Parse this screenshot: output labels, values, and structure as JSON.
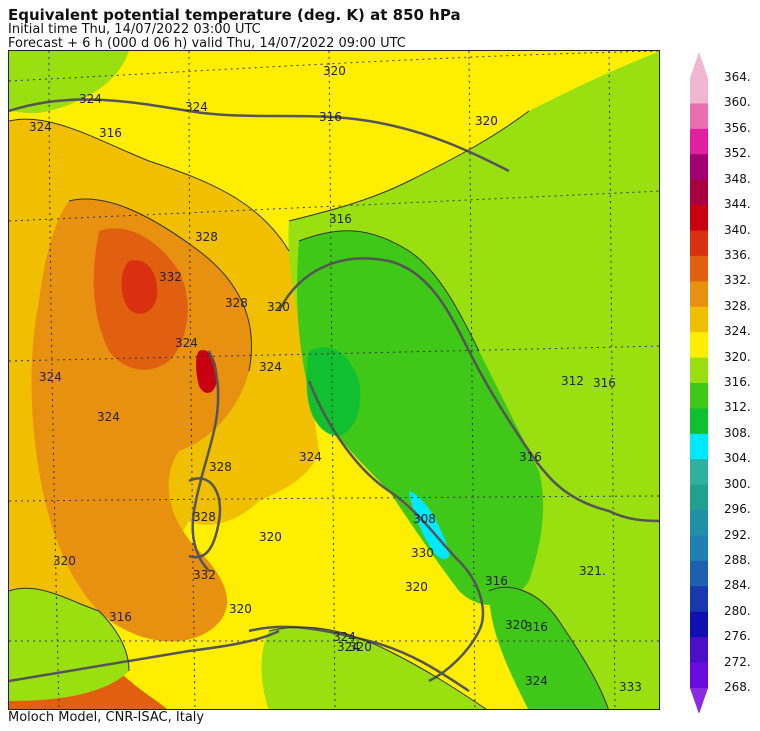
{
  "header": {
    "title": "Equivalent potential temperature (deg. K) at 850 hPa",
    "initial_time": "Initial time  Thu, 14/07/2022  03:00 UTC",
    "forecast": "Forecast  +   6 h  (000 d 06 h)  valid Thu, 14/07/2022 09:00 UTC"
  },
  "footer": {
    "credit": "Moloch Model, CNR-ISAC, Italy"
  },
  "colorbar": {
    "levels": [
      "268.",
      "272.",
      "276.",
      "280.",
      "284.",
      "288.",
      "292.",
      "296.",
      "300.",
      "304.",
      "308.",
      "312.",
      "316.",
      "320.",
      "324.",
      "328.",
      "332.",
      "336.",
      "340.",
      "344.",
      "348.",
      "352.",
      "356.",
      "360.",
      "364."
    ],
    "colors": [
      "#8a2be2",
      "#6a0ce0",
      "#4a10c8",
      "#1010b0",
      "#1838b0",
      "#1f5fb0",
      "#1f7fb0",
      "#2090a8",
      "#20a090",
      "#30b0a0",
      "#00e8ff",
      "#10c030",
      "#40c818",
      "#9ae010",
      "#ffee00",
      "#f0c000",
      "#e89010",
      "#e06010",
      "#d83010",
      "#c80010",
      "#a80040",
      "#a00070",
      "#e020a0",
      "#e870b0",
      "#f0b8d0"
    ]
  },
  "map_labels": [
    "324",
    "324",
    "324",
    "316",
    "320",
    "316",
    "320",
    "328",
    "332",
    "324",
    "328",
    "320",
    "316",
    "324",
    "324",
    "324",
    "320",
    "312",
    "316",
    "316",
    "328",
    "324",
    "328",
    "320",
    "308",
    "330",
    "332",
    "316",
    "320",
    "324",
    "320",
    "324",
    "320",
    "321.",
    "316",
    "333",
    "316",
    "320",
    "324"
  ]
}
